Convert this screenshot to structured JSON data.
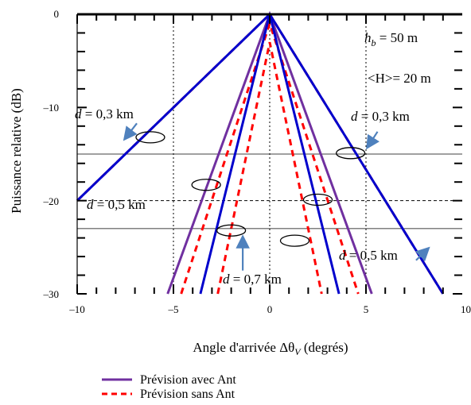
{
  "chart_data": {
    "type": "line",
    "xlabel": "Angle d'arrivée Δθ",
    "xlabel_sub": "V",
    "xlabel_suffix": " (degrés)",
    "ylabel": "Puissance relative (dB)",
    "xlim": [
      -10,
      10
    ],
    "ylim": [
      -30,
      0
    ],
    "x_ticks": [
      -10,
      -5,
      0,
      5,
      10
    ],
    "x_tick_labels": [
      "–10",
      "–5",
      "0",
      "5",
      "10"
    ],
    "y_ticks": [
      0,
      -10,
      -20,
      -30
    ],
    "y_tick_labels": [
      "0",
      "–10",
      "–20",
      "–30"
    ],
    "series": [
      {
        "name": "Prévision avec Ant",
        "color": "#7030a0",
        "style": "solid",
        "lines": [
          {
            "x": [
              -10,
              0,
              9
            ],
            "y": [
              -20,
              0,
              -30
            ]
          },
          {
            "x": [
              -5.3,
              0,
              5.3
            ],
            "y": [
              -30,
              0,
              -30
            ]
          }
        ]
      },
      {
        "name": "Prévision sans Ant",
        "color": "#ff0000",
        "style": "dashed",
        "lines": [
          {
            "x": [
              -10,
              0,
              9
            ],
            "y": [
              -20,
              0,
              -30
            ]
          },
          {
            "x": [
              -4.6,
              0,
              4.6
            ],
            "y": [
              -30,
              -1,
              -30
            ]
          },
          {
            "x": [
              -2.7,
              0,
              2.7
            ],
            "y": [
              -30,
              -3,
              -30
            ]
          }
        ]
      }
    ],
    "extra_lines": [
      {
        "color": "#0000cc",
        "x": [
          -10,
          0,
          9
        ],
        "y": [
          -20,
          0,
          -30
        ]
      },
      {
        "color": "#0000cc",
        "x": [
          -3.6,
          0,
          3.6
        ],
        "y": [
          -30,
          0,
          -30
        ]
      }
    ],
    "reference_lines": {
      "horizontal_solid": [
        -15,
        -23
      ],
      "horizontal_dashed": [
        -20
      ],
      "vertical_dashed": [
        -5,
        0,
        5
      ]
    },
    "ellipses": [
      {
        "cx": -6.2,
        "cy": -13.2
      },
      {
        "cx": 4.2,
        "cy": -14.9
      },
      {
        "cx": -3.3,
        "cy": -18.3
      },
      {
        "cx": 2.5,
        "cy": -19.9
      },
      {
        "cx": -2.0,
        "cy": -23.2
      },
      {
        "cx": 1.3,
        "cy": -24.3
      }
    ],
    "annotations": [
      {
        "prefix": "d",
        "text": " = 0,3 km"
      },
      {
        "prefix": "d",
        "text": " = 0,3 km"
      },
      {
        "prefix": "d",
        "text": " = 0,5 km"
      },
      {
        "prefix": "d",
        "text": " = 0,5 km"
      },
      {
        "prefix": "d",
        "text": " = 0,7 km"
      }
    ],
    "params": {
      "hb_label": "h",
      "hb_sub": "b",
      "hb_value": " = 50 m",
      "H_label": "<H>= 20 m"
    },
    "legend": [
      {
        "label": "Prévision avec Ant",
        "color": "#7030a0",
        "style": "solid"
      },
      {
        "label": "Prévision sans Ant",
        "color": "#ff0000",
        "style": "dashed"
      }
    ]
  }
}
